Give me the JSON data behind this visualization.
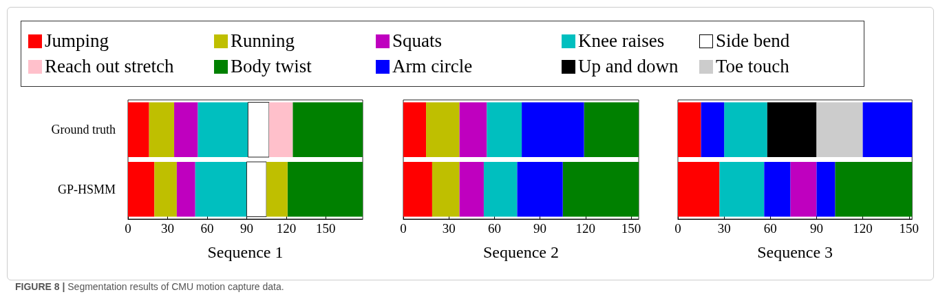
{
  "chart_data": [
    {
      "type": "bar",
      "orientation": "horizontal",
      "xlabel": "Sequence 1",
      "categories": [
        "Ground truth",
        "GP-HSMM"
      ],
      "xlim": [
        0,
        178
      ],
      "xticks": [
        0,
        30,
        60,
        90,
        120,
        150
      ],
      "legend": "top",
      "annotations": [
        "FIGURE 8 | Segmentation results of CMU motion capture data."
      ],
      "series": [
        {
          "name": "Jumping",
          "color": "#ff0000",
          "base": [
            0,
            0
          ],
          "values": [
            16,
            20
          ]
        },
        {
          "name": "Running",
          "color": "#bfbf00",
          "base": [
            16,
            20
          ],
          "values": [
            19,
            17
          ]
        },
        {
          "name": "Squats",
          "color": "#bf00bf",
          "base": [
            35,
            37
          ],
          "values": [
            18,
            14
          ]
        },
        {
          "name": "Knee raises",
          "color": "#00bfbf",
          "base": [
            53,
            51
          ],
          "values": [
            38,
            39
          ]
        },
        {
          "name": "Side bend",
          "color": "#ffffff",
          "base": [
            91,
            90
          ],
          "values": [
            16,
            15
          ]
        },
        {
          "name": "Reach out stretch",
          "color": "#ffc0cb",
          "base": [
            107,
            null
          ],
          "values": [
            18,
            null
          ]
        },
        {
          "name": "Body twist",
          "color": "#008000",
          "base": [
            125,
            121
          ],
          "values": [
            53,
            57
          ]
        },
        {
          "color": "#bfbf00",
          "base": [
            null,
            105
          ],
          "values": [
            null,
            16
          ]
        }
      ]
    },
    {
      "type": "bar",
      "orientation": "horizontal",
      "xlabel": "Sequence 2",
      "categories": [
        null,
        null
      ],
      "xlim": [
        0,
        155
      ],
      "xticks": [
        0,
        30,
        60,
        90,
        120,
        150
      ],
      "tick_labels": "x",
      "legend": "top",
      "series": [
        {
          "name": "Jumping",
          "color": "#ff0000",
          "base": [
            0,
            0
          ],
          "values": [
            15,
            19
          ]
        },
        {
          "name": "Running",
          "color": "#bfbf00",
          "base": [
            15,
            19
          ],
          "values": [
            22,
            18
          ]
        },
        {
          "name": "Squats",
          "color": "#bf00bf",
          "base": [
            37,
            37
          ],
          "values": [
            18,
            16
          ]
        },
        {
          "name": "Knee raises",
          "color": "#00bfbf",
          "base": [
            55,
            53
          ],
          "values": [
            23,
            22
          ]
        },
        {
          "name": "Body twist",
          "color": "#008000",
          "base": [
            119,
            105
          ],
          "values": [
            36,
            50
          ]
        },
        {
          "name": "Arm circle",
          "color": "#0000ff",
          "base": [
            78,
            75
          ],
          "values": [
            41,
            30
          ]
        }
      ]
    },
    {
      "type": "bar",
      "orientation": "horizontal",
      "xlabel": "Sequence 3",
      "categories": [
        null,
        null
      ],
      "xlim": [
        0,
        152
      ],
      "xticks": [
        0,
        30,
        60,
        90,
        120,
        150
      ],
      "tick_labels": "x",
      "legend": "top",
      "series": [
        {
          "name": "Jumping",
          "color": "#ff0000",
          "base": [
            0,
            0
          ],
          "values": [
            15,
            27
          ]
        },
        {
          "name": "Squats",
          "color": "#bf00bf",
          "base": [
            null,
            73
          ],
          "values": [
            null,
            17
          ]
        },
        {
          "name": "Knee raises",
          "color": "#00bfbf",
          "base": [
            30,
            27
          ],
          "values": [
            28,
            29
          ]
        },
        {
          "name": "Body twist",
          "color": "#008000",
          "base": [
            null,
            102
          ],
          "values": [
            null,
            50
          ]
        },
        {
          "name": "Arm circle",
          "color": "#0000ff",
          "base": [
            15,
            56
          ],
          "values": [
            15,
            17
          ]
        },
        {
          "name": "Up and down",
          "color": "#000000",
          "base": [
            58,
            null
          ],
          "values": [
            32,
            null
          ]
        },
        {
          "name": "Toe touch",
          "color": "#cccccc",
          "base": [
            90,
            null
          ],
          "values": [
            30,
            null
          ]
        },
        {
          "color": "#0000ff",
          "base": [
            120,
            90
          ],
          "values": [
            32,
            12
          ]
        }
      ]
    }
  ]
}
